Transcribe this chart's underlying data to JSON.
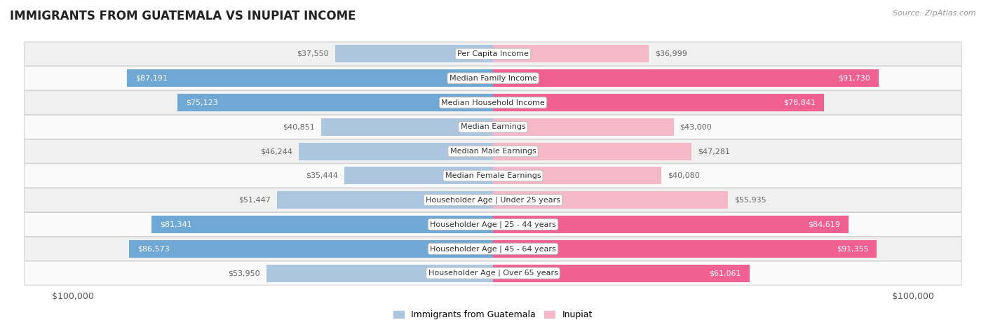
{
  "title": "IMMIGRANTS FROM GUATEMALA VS INUPIAT INCOME",
  "source": "Source: ZipAtlas.com",
  "categories": [
    "Per Capita Income",
    "Median Family Income",
    "Median Household Income",
    "Median Earnings",
    "Median Male Earnings",
    "Median Female Earnings",
    "Householder Age | Under 25 years",
    "Householder Age | 25 - 44 years",
    "Householder Age | 45 - 64 years",
    "Householder Age | Over 65 years"
  ],
  "guatemala_values": [
    37550,
    87191,
    75123,
    40851,
    46244,
    35444,
    51447,
    81341,
    86573,
    53950
  ],
  "inupiat_values": [
    36999,
    91730,
    78841,
    43000,
    47281,
    40080,
    55935,
    84619,
    91355,
    61061
  ],
  "guatemala_color_light": "#adc6e0",
  "guatemala_color_dark": "#6fa8d4",
  "inupiat_color_light": "#f5b8c8",
  "inupiat_color_dark": "#f06090",
  "max_value": 100000,
  "label_color_inside": "#ffffff",
  "label_color_outside": "#666666",
  "background_color": "#ffffff",
  "row_bg_odd": "#f0f0f0",
  "row_bg_even": "#fafafa",
  "legend_guatemala": "Immigrants from Guatemala",
  "legend_inupiat": "Inupiat",
  "bar_height": 0.72,
  "inside_threshold": 60000,
  "title_fontsize": 12,
  "label_fontsize": 8,
  "cat_fontsize": 8
}
